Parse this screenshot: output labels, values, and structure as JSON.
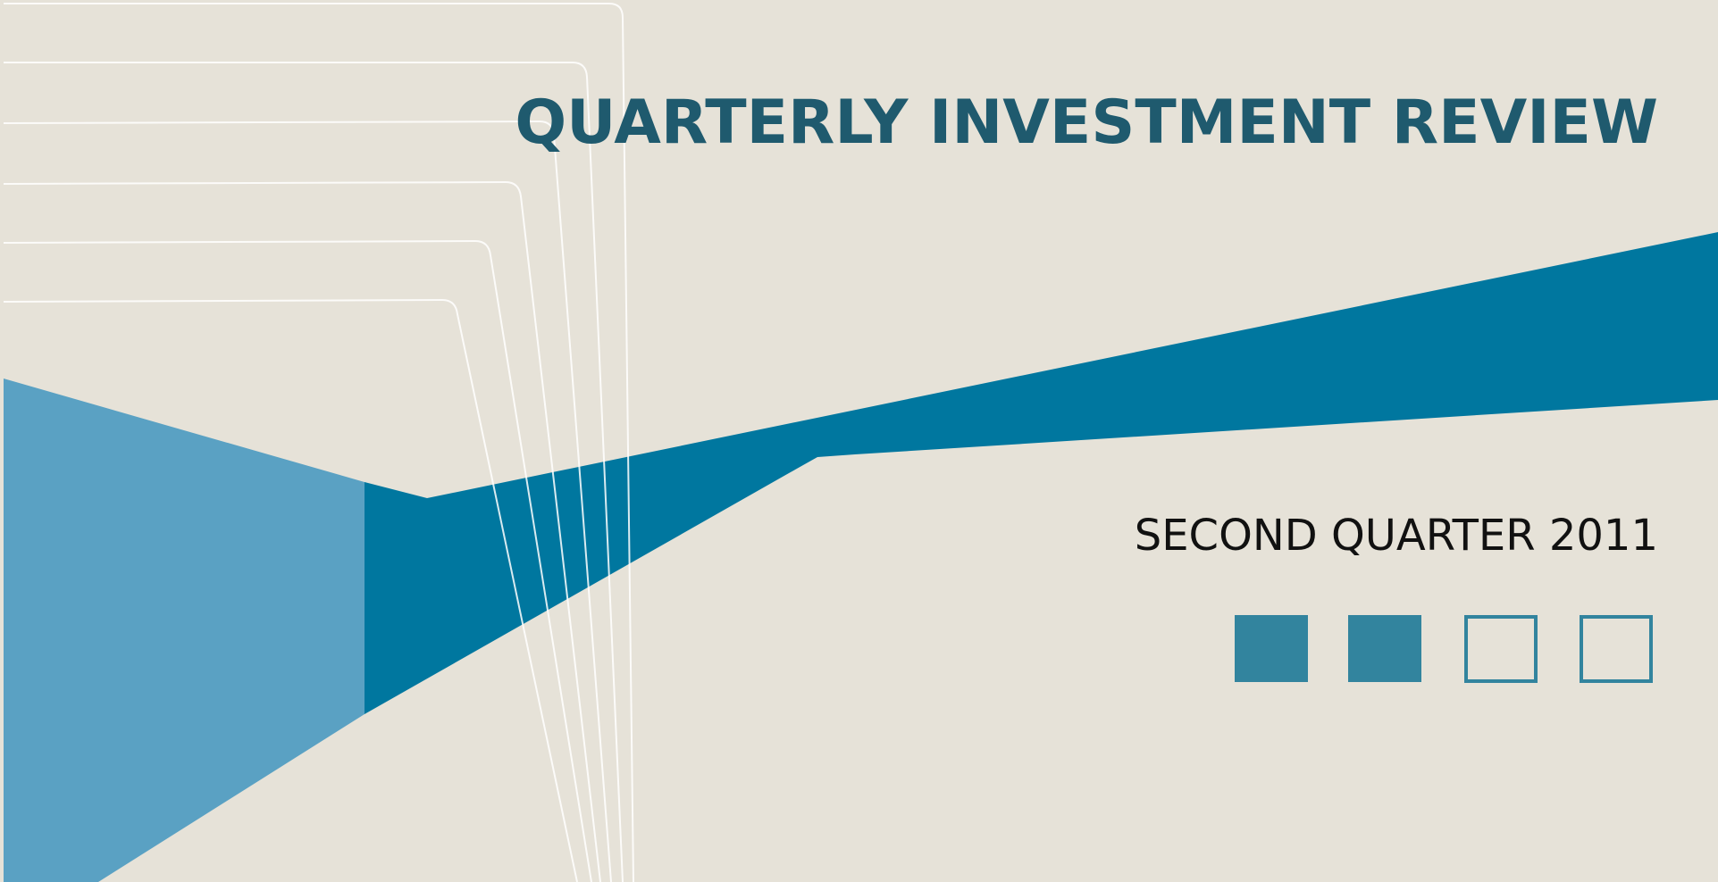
{
  "cover": {
    "title": "QUARTERLY INVESTMENT REVIEW",
    "subtitle": "SECOND QUARTER 2011"
  }
}
